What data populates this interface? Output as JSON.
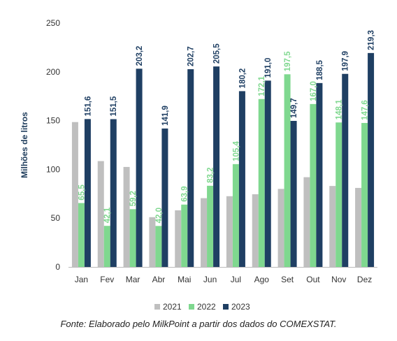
{
  "chart_data": {
    "type": "bar",
    "ylabel": "Milhões de litros",
    "ylim": [
      0,
      250
    ],
    "yticks": [
      0,
      50,
      100,
      150,
      200,
      250
    ],
    "categories": [
      "Jan",
      "Fev",
      "Mar",
      "Abr",
      "Mai",
      "Jun",
      "Jul",
      "Ago",
      "Set",
      "Out",
      "Nov",
      "Dez"
    ],
    "series": [
      {
        "name": "2021",
        "color": "#bfbfbf",
        "labeled": false,
        "values": [
          148.5,
          108.5,
          102.5,
          51,
          58,
          70.5,
          72.5,
          74.5,
          80,
          92,
          83,
          81
        ]
      },
      {
        "name": "2022",
        "color": "#7fd88f",
        "labeled": true,
        "labels": [
          "65,5",
          "42,1",
          "59,2",
          "42,0",
          "63,9",
          "83,2",
          "105,4",
          "172,1",
          "197,5",
          "167,0",
          "148,1",
          "147,6"
        ],
        "values": [
          65.5,
          42.1,
          59.2,
          42.0,
          63.9,
          83.2,
          105.4,
          172.1,
          197.5,
          167.0,
          148.1,
          147.6
        ]
      },
      {
        "name": "2023",
        "color": "#1f3f63",
        "labeled": true,
        "labels": [
          "151,6",
          "151,5",
          "203,2",
          "141,9",
          "202,7",
          "205,5",
          "180,2",
          "191,0",
          "149,7",
          "188,5",
          "197,9",
          "219,3"
        ],
        "values": [
          151.6,
          151.5,
          203.2,
          141.9,
          202.7,
          205.5,
          180.2,
          191.0,
          149.7,
          188.5,
          197.9,
          219.3
        ]
      }
    ],
    "grid": false,
    "legend_position": "bottom"
  },
  "source_note": "Fonte: Elaborado pelo MilkPoint a partir dos dados do COMEXSTAT."
}
